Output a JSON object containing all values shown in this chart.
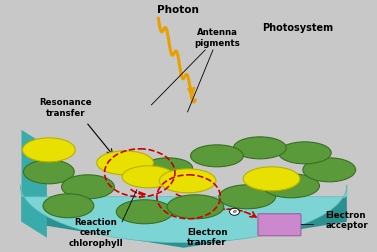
{
  "bg_color": "#c8c8c8",
  "platform_color_top": "#7dd4d4",
  "platform_color_side": "#4aabab",
  "platform_color_bottom": "#2a9090",
  "platform_color_left": "#3aabab",
  "green_disk_color": "#5a9a3a",
  "green_disk_edge": "#3a7020",
  "yellow_disk_color": "#e8e000",
  "yellow_disk_edge": "#b8b000",
  "electron_acceptor_color": "#cc88cc",
  "electron_acceptor_edge": "#9960a0",
  "arrow_red": "#cc0000",
  "photon_color": "#e8a000",
  "text_color": "#000000",
  "label_photon": "Photon",
  "label_antenna": "Antenna\npigments",
  "label_photosystem": "Photosystem",
  "label_resonance": "Resonance\ntransfer",
  "label_reaction": "Reaction\ncenter\nchlorophyll",
  "label_electron_transfer": "Electron\ntransfer",
  "label_electron_acceptor": "Electron\nacceptor"
}
